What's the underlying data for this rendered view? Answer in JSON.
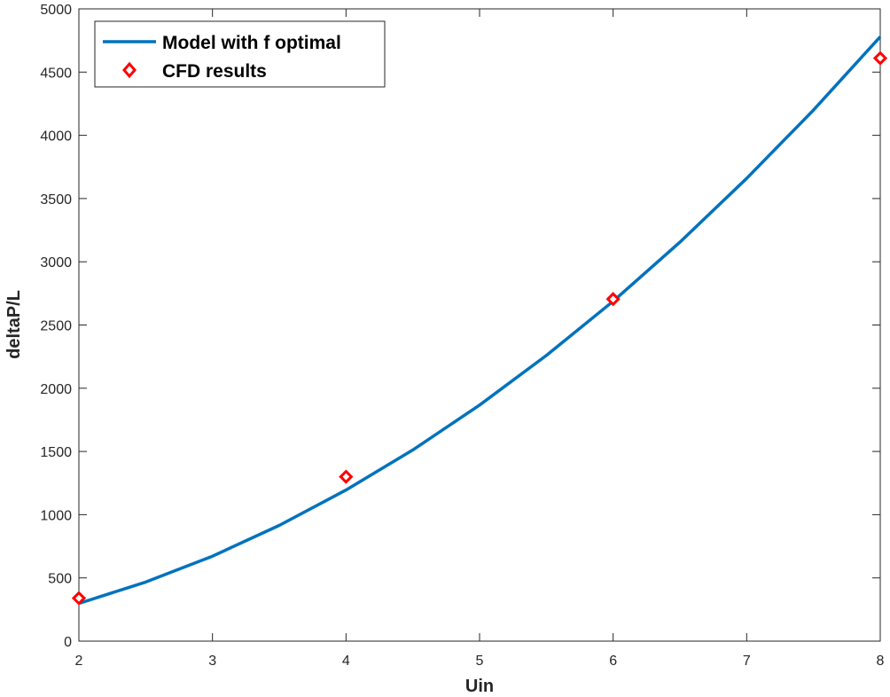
{
  "chart_data": {
    "type": "line",
    "xlabel": "Uin",
    "ylabel": "deltaP/L",
    "xlim": [
      2,
      8
    ],
    "ylim": [
      0,
      5000
    ],
    "xticks": [
      2,
      3,
      4,
      5,
      6,
      7,
      8
    ],
    "yticks": [
      0,
      500,
      1000,
      1500,
      2000,
      2500,
      3000,
      3500,
      4000,
      4500,
      5000
    ],
    "grid": false,
    "legend_position": "top-left",
    "series": [
      {
        "name": "Model with f optimal",
        "kind": "line",
        "color": "#0072BD",
        "x": [
          2.0,
          2.5,
          3.0,
          3.5,
          4.0,
          4.5,
          5.0,
          5.5,
          6.0,
          6.5,
          7.0,
          7.5,
          8.0
        ],
        "y": [
          298,
          467,
          672,
          915,
          1195,
          1512,
          1867,
          2259,
          2688,
          3155,
          3659,
          4200,
          4780
        ]
      },
      {
        "name": "CFD results",
        "kind": "marker",
        "marker": "diamond",
        "color": "#FF0000",
        "x": [
          2,
          4,
          6,
          8
        ],
        "y": [
          340,
          1300,
          2705,
          4610
        ]
      }
    ]
  }
}
